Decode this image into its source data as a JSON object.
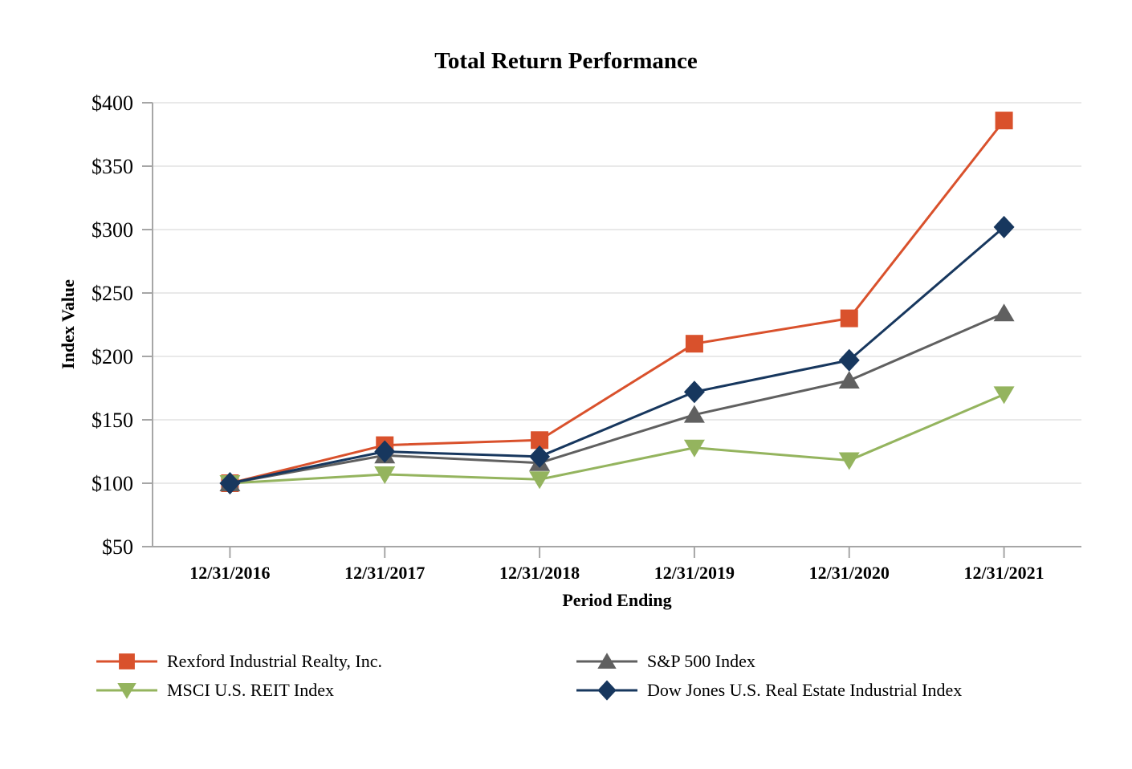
{
  "chart_data": {
    "type": "line",
    "title": "Total Return Performance",
    "xlabel": "Period Ending",
    "ylabel": "Index Value",
    "categories": [
      "12/31/2016",
      "12/31/2017",
      "12/31/2018",
      "12/31/2019",
      "12/31/2020",
      "12/31/2021"
    ],
    "y_ticks": [
      50,
      100,
      150,
      200,
      250,
      300,
      350,
      400
    ],
    "y_tick_labels": [
      "$50",
      "$100",
      "$150",
      "$200",
      "$250",
      "$300",
      "$350",
      "$400"
    ],
    "ylim": [
      50,
      400
    ],
    "grid": true,
    "legend_position": "bottom",
    "series": [
      {
        "name": "Rexford Industrial Realty, Inc.",
        "marker": "square",
        "color": "#D9512C",
        "values": [
          100,
          130,
          134,
          210,
          230,
          386
        ]
      },
      {
        "name": "S&P 500 Index",
        "marker": "triangle-up",
        "color": "#606060",
        "values": [
          100,
          122,
          116,
          154,
          181,
          234
        ]
      },
      {
        "name": "MSCI U.S. REIT Index",
        "marker": "triangle-down",
        "color": "#94B45E",
        "values": [
          100,
          107,
          103,
          128,
          118,
          170
        ]
      },
      {
        "name": "Dow Jones U.S. Real Estate Industrial Index",
        "marker": "diamond",
        "color": "#17375E",
        "values": [
          100,
          125,
          121,
          172,
          197,
          302
        ]
      }
    ],
    "colors": {
      "axis": "#A6A6A6",
      "gridline": "#E9E9E9",
      "text": "#000000"
    }
  }
}
